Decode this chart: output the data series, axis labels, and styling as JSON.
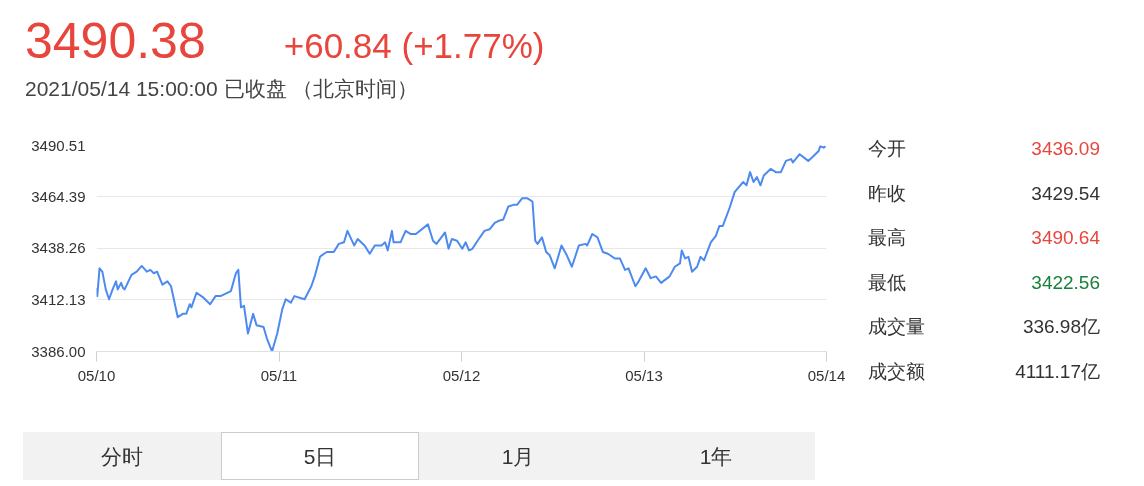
{
  "chart_data": [
    {
      "type": "line",
      "title": "3490.38",
      "subtitle": "+60.84 (+1.77%)",
      "annotations": [
        "2021/05/14 15:00:00 已收盘 （北京时间）",
        "分时",
        "5日",
        "1月",
        "1年"
      ],
      "xlim": [
        "2021-05-10",
        "2021-05-14"
      ],
      "xticks": [
        {
          "value": "2021-05-10",
          "label": "05/10"
        },
        {
          "value": "2021-05-11",
          "label": "05/11"
        },
        {
          "value": "2021-05-12",
          "label": "05/12"
        },
        {
          "value": "2021-05-13",
          "label": "05/13"
        },
        {
          "value": "2021-05-14",
          "label": "05/14"
        }
      ],
      "ylim": [
        3386,
        3490.51
      ],
      "yticks": [
        {
          "value": 3386,
          "label": "3386.00"
        },
        3412.13,
        3438.26,
        3464.39,
        3490.51
      ],
      "grid": "y",
      "series": [
        {
          "color": "#4d8af0",
          "x": [
            "2021-05-10T00:00",
            "2021-05-10T00:06",
            "2021-05-10T00:24",
            "2021-05-10T00:46",
            "2021-05-10T01:13",
            "2021-05-10T01:39",
            "2021-05-10T02:07",
            "2021-05-10T02:34",
            "2021-05-10T02:47",
            "2021-05-10T03:14",
            "2021-05-10T03:29",
            "2021-05-10T03:42",
            "2021-05-10T04:36",
            "2021-05-10T05:17",
            "2021-05-10T05:57",
            "2021-05-10T06:37",
            "2021-05-10T07:05",
            "2021-05-10T07:32",
            "2021-05-10T07:58",
            "2021-05-10T08:40",
            "2021-05-10T09:20",
            "2021-05-10T09:48",
            "2021-05-10T10:41",
            "2021-05-10T11:21",
            "2021-05-10T11:48",
            "2021-05-10T12:16",
            "2021-05-10T12:29",
            "2021-05-10T13:09",
            "2021-05-10T14:04",
            "2021-05-10T14:57",
            "2021-05-10T15:39",
            "2021-05-10T16:19",
            "2021-05-10T17:40",
            "2021-05-10T18:20",
            "2021-05-10T18:39",
            "2021-05-10T19:00",
            "2021-05-10T19:24",
            "2021-05-10T19:55",
            "2021-05-10T20:36",
            "2021-05-10T21:03",
            "2021-05-10T21:58",
            "2021-05-10T22:24",
            "2021-05-10T23:05",
            "2021-05-10T23:46",
            "2021-05-11T00:26",
            "2021-05-11T00:53",
            "2021-05-11T01:34",
            "2021-05-11T02:01",
            "2021-05-11T03:22",
            "2021-05-11T04:15",
            "2021-05-11T04:42",
            "2021-05-11T05:23",
            "2021-05-11T05:37",
            "2021-05-11T06:17",
            "2021-05-11T07:12",
            "2021-05-11T07:52",
            "2021-05-11T08:33",
            "2021-05-11T09:00",
            "2021-05-11T09:53",
            "2021-05-11T10:21",
            "2021-05-11T11:15",
            "2021-05-11T11:56",
            "2021-05-11T12:36",
            "2021-05-11T13:29",
            "2021-05-11T13:57",
            "2021-05-11T14:18",
            "2021-05-11T14:51",
            "2021-05-11T15:04",
            "2021-05-11T15:59",
            "2021-05-11T16:39",
            "2021-05-11T17:20",
            "2021-05-11T18:00",
            "2021-05-11T19:35",
            "2021-05-11T20:15",
            "2021-05-11T20:43",
            "2021-05-11T21:50",
            "2021-05-11T22:18",
            "2021-05-11T22:44",
            "2021-05-11T23:25",
            "2021-05-12T00:06",
            "2021-05-12T00:33",
            "2021-05-12T00:59",
            "2021-05-12T01:26",
            "2021-05-12T02:07",
            "2021-05-12T03:01",
            "2021-05-12T03:42",
            "2021-05-12T04:22",
            "2021-05-12T04:49",
            "2021-05-12T05:30",
            "2021-05-12T06:10",
            "2021-05-12T06:50",
            "2021-05-12T07:18",
            "2021-05-12T07:58",
            "2021-05-12T08:40",
            "2021-05-12T09:20",
            "2021-05-12T09:42",
            "2021-05-12T10:00",
            "2021-05-12T10:35",
            "2021-05-12T11:08",
            "2021-05-12T11:36",
            "2021-05-12T12:16",
            "2021-05-12T13:09",
            "2021-05-12T13:51",
            "2021-05-12T14:31",
            "2021-05-12T15:26",
            "2021-05-12T16:19",
            "2021-05-12T16:32",
            "2021-05-12T17:12",
            "2021-05-12T17:53",
            "2021-05-12T18:35",
            "2021-05-12T19:15",
            "2021-05-12T20:10",
            "2021-05-12T20:50",
            "2021-05-12T21:30",
            "2021-05-12T21:58",
            "2021-05-12T22:52",
            "2021-05-12T23:18",
            "2021-05-13T00:13",
            "2021-05-13T00:53",
            "2021-05-13T01:34",
            "2021-05-13T02:15",
            "2021-05-13T03:22",
            "2021-05-13T04:03",
            "2021-05-13T04:44",
            "2021-05-13T04:58",
            "2021-05-13T05:24",
            "2021-05-13T05:51",
            "2021-05-13T06:19",
            "2021-05-13T06:59",
            "2021-05-13T07:26",
            "2021-05-13T07:54",
            "2021-05-13T08:47",
            "2021-05-13T09:27",
            "2021-05-13T09:55",
            "2021-05-13T10:22",
            "2021-05-13T11:15",
            "2021-05-13T11:56",
            "2021-05-13T13:03",
            "2021-05-13T13:29",
            "2021-05-13T13:57",
            "2021-05-13T14:24",
            "2021-05-13T14:51",
            "2021-05-13T15:19",
            "2021-05-13T15:45",
            "2021-05-13T16:39",
            "2021-05-13T17:20",
            "2021-05-13T18:00",
            "2021-05-13T18:40",
            "2021-05-13T19:21",
            "2021-05-13T19:35",
            "2021-05-13T20:28",
            "2021-05-13T21:36",
            "2021-05-13T22:18",
            "2021-05-13T22:58",
            "2021-05-13T23:11",
            "2021-05-13T23:38",
            "2021-05-13T23:51"
          ],
          "values": [
            3418.3,
            3414.1,
            3428.2,
            3426.5,
            3417.5,
            3412.5,
            3417.5,
            3421.6,
            3417.5,
            3420.8,
            3418.3,
            3417.5,
            3424.9,
            3426.5,
            3429.4,
            3426.5,
            3427.4,
            3425.7,
            3426.5,
            3419.9,
            3421.6,
            3419.1,
            3403.4,
            3405.1,
            3405.1,
            3410.0,
            3408.4,
            3415.8,
            3413.3,
            3410.0,
            3414.1,
            3414.1,
            3416.6,
            3425.7,
            3427.4,
            3408.4,
            3409.2,
            3395.1,
            3405.1,
            3399.3,
            3398.4,
            3392.7,
            3386.0,
            3395.1,
            3407.5,
            3412.5,
            3410.8,
            3414.1,
            3412.5,
            3419.1,
            3424.1,
            3434.0,
            3434.8,
            3436.5,
            3436.5,
            3440.6,
            3441.4,
            3447.2,
            3439.8,
            3443.1,
            3439.8,
            3435.6,
            3439.8,
            3439.8,
            3441.4,
            3437.3,
            3447.2,
            3441.4,
            3441.4,
            3447.2,
            3445.6,
            3445.6,
            3450.5,
            3442.2,
            3440.6,
            3446.4,
            3438.1,
            3443.1,
            3442.2,
            3438.1,
            3441.4,
            3437.3,
            3438.1,
            3442.2,
            3447.2,
            3448.0,
            3451.3,
            3452.2,
            3453.0,
            3459.6,
            3460.4,
            3460.4,
            3463.7,
            3463.7,
            3462.1,
            3442.2,
            3440.6,
            3443.9,
            3436.5,
            3434.8,
            3428.2,
            3439.8,
            3434.8,
            3429.0,
            3439.8,
            3440.6,
            3439.8,
            3445.6,
            3443.9,
            3436.5,
            3435.6,
            3433.2,
            3433.2,
            3427.4,
            3428.2,
            3419.1,
            3421.6,
            3428.2,
            3423.2,
            3424.1,
            3420.8,
            3424.1,
            3429.0,
            3430.7,
            3437.3,
            3433.2,
            3434.0,
            3426.5,
            3429.0,
            3434.0,
            3432.3,
            3441.4,
            3444.7,
            3449.7,
            3449.7,
            3458.8,
            3467.0,
            3472.0,
            3470.3,
            3477.0,
            3472.0,
            3474.5,
            3470.3,
            3475.3,
            3478.6,
            3477.0,
            3477.0,
            3482.7,
            3483.6,
            3481.9,
            3486.1,
            3482.7,
            3485.2,
            3487.7,
            3490.2,
            3489.4,
            3490.2
          ]
        }
      ]
    },
    {
      "type": "other",
      "categories": [
        "今开",
        "昨收",
        "最高",
        "最低",
        "成交量",
        "成交额"
      ],
      "value_labels": [
        "3436.09",
        "3429.54",
        "3490.64",
        "3422.56",
        "336.98亿",
        "4111.17亿"
      ],
      "colors": [
        "#e8453c",
        "#333333",
        "#e8453c",
        "#188038",
        "#333333",
        "#333333"
      ]
    }
  ]
}
